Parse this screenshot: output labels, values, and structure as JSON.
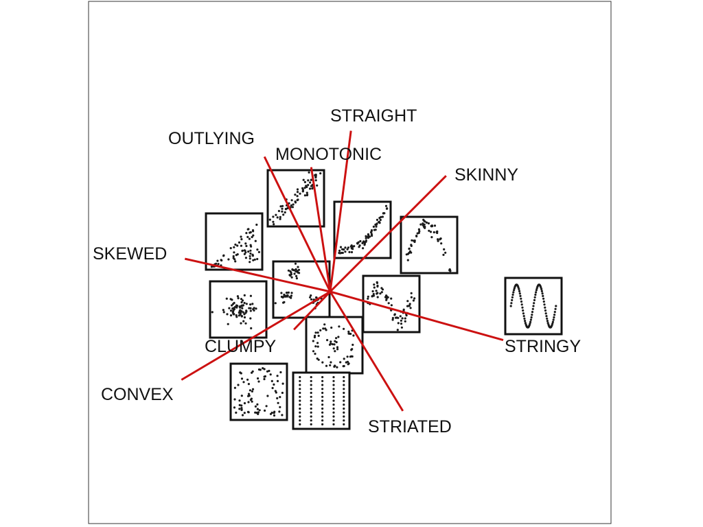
{
  "chart_data": {
    "type": "scatter",
    "title": "",
    "xlabel": "",
    "ylabel": "",
    "grid": false,
    "legend": "none",
    "description_note": "Biplot of scagnostic measures with thumbnail scatterplots",
    "vectors": [
      {
        "name": "OUTLYING",
        "dx": -0.38,
        "dy": 0.78
      },
      {
        "name": "STRAIGHT",
        "dx": 0.12,
        "dy": 0.93
      },
      {
        "name": "MONOTONIC",
        "dx": -0.11,
        "dy": 0.72
      },
      {
        "name": "SKINNY",
        "dx": 0.67,
        "dy": 0.67
      },
      {
        "name": "SKEWED",
        "dx": -0.84,
        "dy": 0.19
      },
      {
        "name": "STRINGY",
        "dx": 1.0,
        "dy": -0.28
      },
      {
        "name": "CLUMPY",
        "dx": -0.21,
        "dy": -0.22
      },
      {
        "name": "CONVEX",
        "dx": -0.86,
        "dy": -0.51
      },
      {
        "name": "STRIATED",
        "dx": 0.42,
        "dy": -0.69
      }
    ],
    "thumbnails": [
      {
        "id": "positive-correlation-tight",
        "pattern": "linear-tight"
      },
      {
        "id": "positive-correlation-wide",
        "pattern": "linear-wide"
      },
      {
        "id": "exponential-curve",
        "pattern": "exponential"
      },
      {
        "id": "inverted-parabola",
        "pattern": "parabola"
      },
      {
        "id": "clusters",
        "pattern": "clusters"
      },
      {
        "id": "noisy-sine",
        "pattern": "noisy-wave"
      },
      {
        "id": "sine-wave",
        "pattern": "sine"
      },
      {
        "id": "blob",
        "pattern": "blob"
      },
      {
        "id": "ring",
        "pattern": "ring"
      },
      {
        "id": "uniform-scatter",
        "pattern": "uniform"
      },
      {
        "id": "vertical-stripes",
        "pattern": "striated"
      }
    ]
  },
  "colors": {
    "arrow": "#cc1111",
    "points": "#1a1a1a",
    "frame": "#111111"
  }
}
